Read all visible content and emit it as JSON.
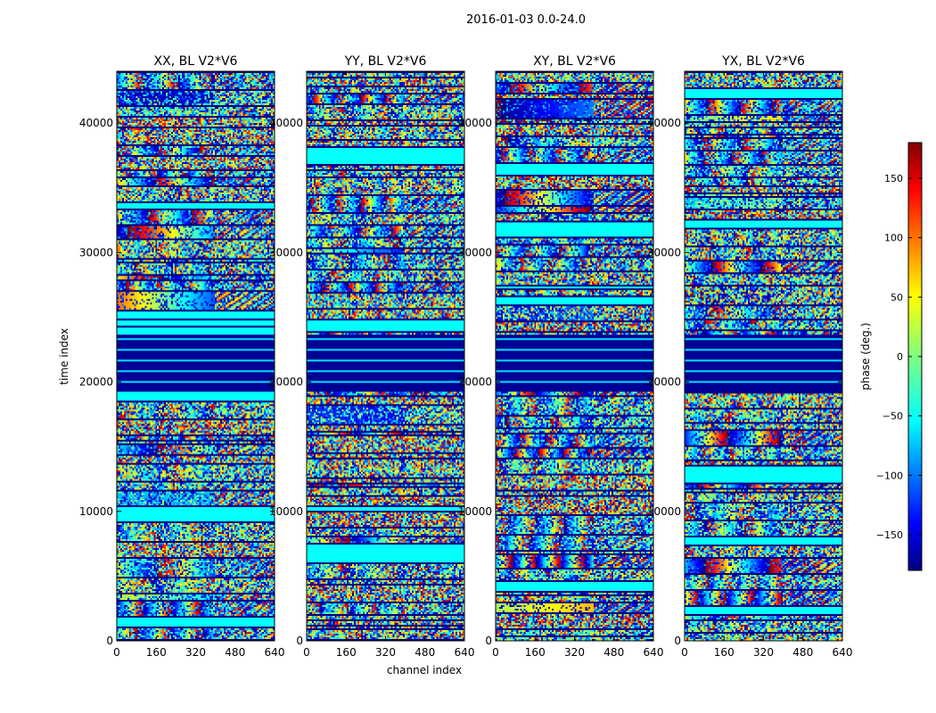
{
  "figure": {
    "suptitle": "2016-01-03 0.0-24.0",
    "xlabel": "channel index",
    "ylabel": "time index"
  },
  "chart_data": {
    "type": "heatmap",
    "colormap": "jet",
    "x_range": [
      0,
      640
    ],
    "y_range": [
      0,
      44000
    ],
    "x_ticks": [
      0,
      160,
      320,
      480,
      640
    ],
    "y_ticks": [
      0,
      10000,
      20000,
      30000,
      40000
    ],
    "x_tick_labels": [
      "0",
      "160",
      "320",
      "480",
      "640"
    ],
    "y_tick_labels": [
      "0",
      "10000",
      "20000",
      "30000",
      "40000"
    ],
    "panels": [
      {
        "title": "XX, BL V2*V6"
      },
      {
        "title": "YY, BL V2*V6"
      },
      {
        "title": "XY, BL V2*V6"
      },
      {
        "title": "YX, BL V2*V6"
      }
    ],
    "colorbar": {
      "label": "phase (deg.)",
      "range": [
        -180,
        180
      ],
      "ticks": [
        150,
        100,
        50,
        0,
        -50,
        -100,
        -150
      ],
      "tick_labels": [
        "150",
        "100",
        "50",
        "0",
        "−50",
        "−100",
        "−150"
      ]
    }
  }
}
